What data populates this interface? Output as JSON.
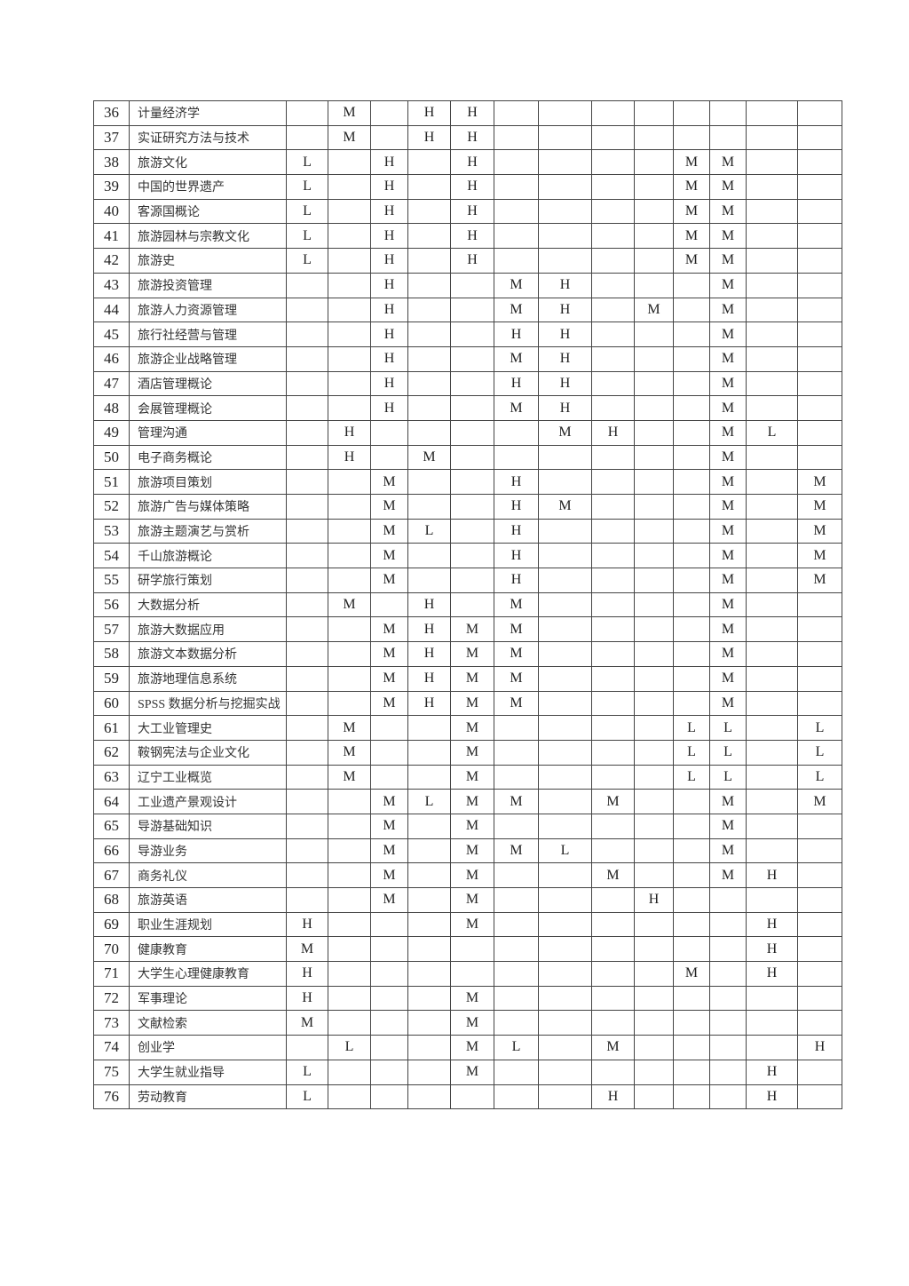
{
  "rows": [
    {
      "no": "36",
      "name": "计量经济学",
      "cells": [
        "",
        "M",
        "",
        "H",
        "H",
        "",
        "",
        "",
        "",
        "",
        "",
        "",
        ""
      ]
    },
    {
      "no": "37",
      "name": "实证研究方法与技术",
      "cells": [
        "",
        "M",
        "",
        "H",
        "H",
        "",
        "",
        "",
        "",
        "",
        "",
        "",
        ""
      ]
    },
    {
      "no": "38",
      "name": "旅游文化",
      "cells": [
        "L",
        "",
        "H",
        "",
        "H",
        "",
        "",
        "",
        "",
        "M",
        "M",
        "",
        ""
      ]
    },
    {
      "no": "39",
      "name": "中国的世界遗产",
      "cells": [
        "L",
        "",
        "H",
        "",
        "H",
        "",
        "",
        "",
        "",
        "M",
        "M",
        "",
        ""
      ]
    },
    {
      "no": "40",
      "name": "客源国概论",
      "cells": [
        "L",
        "",
        "H",
        "",
        "H",
        "",
        "",
        "",
        "",
        "M",
        "M",
        "",
        ""
      ]
    },
    {
      "no": "41",
      "name": "旅游园林与宗教文化",
      "cells": [
        "L",
        "",
        "H",
        "",
        "H",
        "",
        "",
        "",
        "",
        "M",
        "M",
        "",
        ""
      ]
    },
    {
      "no": "42",
      "name": "旅游史",
      "cells": [
        "L",
        "",
        "H",
        "",
        "H",
        "",
        "",
        "",
        "",
        "M",
        "M",
        "",
        ""
      ]
    },
    {
      "no": "43",
      "name": "旅游投资管理",
      "cells": [
        "",
        "",
        "H",
        "",
        "",
        "M",
        "H",
        "",
        "",
        "",
        "M",
        "",
        ""
      ]
    },
    {
      "no": "44",
      "name": "旅游人力资源管理",
      "cells": [
        "",
        "",
        "H",
        "",
        "",
        "M",
        "H",
        "",
        "M",
        "",
        "M",
        "",
        ""
      ]
    },
    {
      "no": "45",
      "name": "旅行社经营与管理",
      "cells": [
        "",
        "",
        "H",
        "",
        "",
        "H",
        "H",
        "",
        "",
        "",
        "M",
        "",
        ""
      ]
    },
    {
      "no": "46",
      "name": "旅游企业战略管理",
      "cells": [
        "",
        "",
        "H",
        "",
        "",
        "M",
        "H",
        "",
        "",
        "",
        "M",
        "",
        ""
      ]
    },
    {
      "no": "47",
      "name": "酒店管理概论",
      "cells": [
        "",
        "",
        "H",
        "",
        "",
        "H",
        "H",
        "",
        "",
        "",
        "M",
        "",
        ""
      ]
    },
    {
      "no": "48",
      "name": "会展管理概论",
      "cells": [
        "",
        "",
        "H",
        "",
        "",
        "M",
        "H",
        "",
        "",
        "",
        "M",
        "",
        ""
      ]
    },
    {
      "no": "49",
      "name": "管理沟通",
      "cells": [
        "",
        "H",
        "",
        "",
        "",
        "",
        "M",
        "H",
        "",
        "",
        "M",
        "L",
        ""
      ]
    },
    {
      "no": "50",
      "name": "电子商务概论",
      "cells": [
        "",
        "H",
        "",
        "M",
        "",
        "",
        "",
        "",
        "",
        "",
        "M",
        "",
        ""
      ]
    },
    {
      "no": "51",
      "name": "旅游项目策划",
      "cells": [
        "",
        "",
        "M",
        "",
        "",
        "H",
        "",
        "",
        "",
        "",
        "M",
        "",
        "M"
      ]
    },
    {
      "no": "52",
      "name": "旅游广告与媒体策略",
      "cells": [
        "",
        "",
        "M",
        "",
        "",
        "H",
        "M",
        "",
        "",
        "",
        "M",
        "",
        "M"
      ]
    },
    {
      "no": "53",
      "name": "旅游主题演艺与赏析",
      "cells": [
        "",
        "",
        "M",
        "L",
        "",
        "H",
        "",
        "",
        "",
        "",
        "M",
        "",
        "M"
      ]
    },
    {
      "no": "54",
      "name": "千山旅游概论",
      "cells": [
        "",
        "",
        "M",
        "",
        "",
        "H",
        "",
        "",
        "",
        "",
        "M",
        "",
        "M"
      ]
    },
    {
      "no": "55",
      "name": "研学旅行策划",
      "cells": [
        "",
        "",
        "M",
        "",
        "",
        "H",
        "",
        "",
        "",
        "",
        "M",
        "",
        "M"
      ]
    },
    {
      "no": "56",
      "name": "大数据分析",
      "cells": [
        "",
        "M",
        "",
        "H",
        "",
        "M",
        "",
        "",
        "",
        "",
        "M",
        "",
        ""
      ]
    },
    {
      "no": "57",
      "name": "旅游大数据应用",
      "cells": [
        "",
        "",
        "M",
        "H",
        "M",
        "M",
        "",
        "",
        "",
        "",
        "M",
        "",
        ""
      ]
    },
    {
      "no": "58",
      "name": "旅游文本数据分析",
      "cells": [
        "",
        "",
        "M",
        "H",
        "M",
        "M",
        "",
        "",
        "",
        "",
        "M",
        "",
        ""
      ]
    },
    {
      "no": "59",
      "name": "旅游地理信息系统",
      "cells": [
        "",
        "",
        "M",
        "H",
        "M",
        "M",
        "",
        "",
        "",
        "",
        "M",
        "",
        ""
      ]
    },
    {
      "no": "60",
      "name": "SPSS 数据分析与挖掘实战",
      "cells": [
        "",
        "",
        "M",
        "H",
        "M",
        "M",
        "",
        "",
        "",
        "",
        "M",
        "",
        ""
      ]
    },
    {
      "no": "61",
      "name": "大工业管理史",
      "cells": [
        "",
        "M",
        "",
        "",
        "M",
        "",
        "",
        "",
        "",
        "L",
        "L",
        "",
        "L"
      ]
    },
    {
      "no": "62",
      "name": "鞍钢宪法与企业文化",
      "cells": [
        "",
        "M",
        "",
        "",
        "M",
        "",
        "",
        "",
        "",
        "L",
        "L",
        "",
        "L"
      ]
    },
    {
      "no": "63",
      "name": "辽宁工业概览",
      "cells": [
        "",
        "M",
        "",
        "",
        "M",
        "",
        "",
        "",
        "",
        "L",
        "L",
        "",
        "L"
      ]
    },
    {
      "no": "64",
      "name": "工业遗产景观设计",
      "cells": [
        "",
        "",
        "M",
        "L",
        "M",
        "M",
        "",
        "M",
        "",
        "",
        "M",
        "",
        "M"
      ]
    },
    {
      "no": "65",
      "name": "导游基础知识",
      "cells": [
        "",
        "",
        "M",
        "",
        "M",
        "",
        "",
        "",
        "",
        "",
        "M",
        "",
        ""
      ]
    },
    {
      "no": "66",
      "name": "导游业务",
      "cells": [
        "",
        "",
        "M",
        "",
        "M",
        "M",
        "L",
        "",
        "",
        "",
        "M",
        "",
        ""
      ]
    },
    {
      "no": "67",
      "name": "商务礼仪",
      "cells": [
        "",
        "",
        "M",
        "",
        "M",
        "",
        "",
        "M",
        "",
        "",
        "M",
        "H",
        ""
      ]
    },
    {
      "no": "68",
      "name": "旅游英语",
      "cells": [
        "",
        "",
        "M",
        "",
        "M",
        "",
        "",
        "",
        "H",
        "",
        "",
        "",
        ""
      ]
    },
    {
      "no": "69",
      "name": "职业生涯规划",
      "cells": [
        "H",
        "",
        "",
        "",
        "M",
        "",
        "",
        "",
        "",
        "",
        "",
        "H",
        ""
      ]
    },
    {
      "no": "70",
      "name": "健康教育",
      "cells": [
        "M",
        "",
        "",
        "",
        "",
        "",
        "",
        "",
        "",
        "",
        "",
        "H",
        ""
      ]
    },
    {
      "no": "71",
      "name": "大学生心理健康教育",
      "cells": [
        "H",
        "",
        "",
        "",
        "",
        "",
        "",
        "",
        "",
        "M",
        "",
        "H",
        ""
      ]
    },
    {
      "no": "72",
      "name": "军事理论",
      "cells": [
        "H",
        "",
        "",
        "",
        "M",
        "",
        "",
        "",
        "",
        "",
        "",
        "",
        ""
      ]
    },
    {
      "no": "73",
      "name": "文献检索",
      "cells": [
        "M",
        "",
        "",
        "",
        "M",
        "",
        "",
        "",
        "",
        "",
        "",
        "",
        ""
      ]
    },
    {
      "no": "74",
      "name": "创业学",
      "cells": [
        "",
        "L",
        "",
        "",
        "M",
        "L",
        "",
        "M",
        "",
        "",
        "",
        "",
        "H"
      ]
    },
    {
      "no": "75",
      "name": "大学生就业指导",
      "cells": [
        "L",
        "",
        "",
        "",
        "M",
        "",
        "",
        "",
        "",
        "",
        "",
        "H",
        ""
      ]
    },
    {
      "no": "76",
      "name": "劳动教育",
      "cells": [
        "L",
        "",
        "",
        "",
        "",
        "",
        "",
        "H",
        "",
        "",
        "",
        "H",
        ""
      ]
    }
  ]
}
